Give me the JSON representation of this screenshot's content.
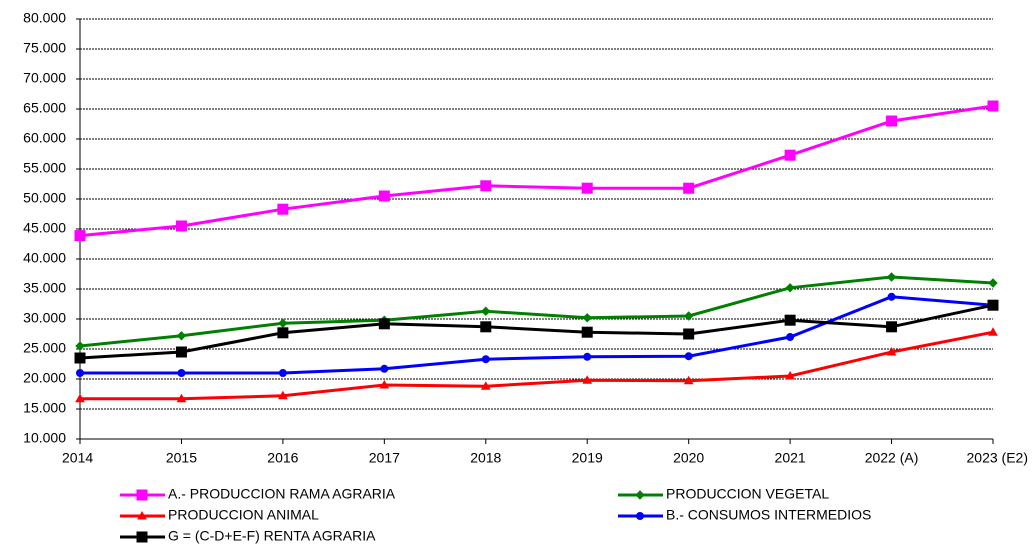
{
  "chart_data": {
    "type": "line",
    "categories": [
      "2014",
      "2015",
      "2016",
      "2017",
      "2018",
      "2019",
      "2020",
      "2021",
      "2022 (A)",
      "2023 (E2)"
    ],
    "ylim": [
      10000,
      80000
    ],
    "yticks": [
      {
        "value": 10000,
        "label": "10.000"
      },
      {
        "value": 15000,
        "label": "15.000"
      },
      {
        "value": 20000,
        "label": "20.000"
      },
      {
        "value": 25000,
        "label": "25.000"
      },
      {
        "value": 30000,
        "label": "30.000"
      },
      {
        "value": 35000,
        "label": "35.000"
      },
      {
        "value": 40000,
        "label": "40.000"
      },
      {
        "value": 45000,
        "label": "45.000"
      },
      {
        "value": 50000,
        "label": "50.000"
      },
      {
        "value": 55000,
        "label": "55.000"
      },
      {
        "value": 60000,
        "label": "60.000"
      },
      {
        "value": 65000,
        "label": "65.000"
      },
      {
        "value": 70000,
        "label": "70.000"
      },
      {
        "value": 75000,
        "label": "75.000"
      },
      {
        "value": 80000,
        "label": "80.000"
      }
    ],
    "grid": true,
    "series": [
      {
        "name": "A.- PRODUCCION RAMA AGRARIA",
        "color": "#ff00ff",
        "marker": "square",
        "values": [
          43900,
          45500,
          48300,
          50500,
          52200,
          51800,
          51800,
          57300,
          63000,
          65500
        ]
      },
      {
        "name": "PRODUCCION VEGETAL",
        "color": "#008000",
        "marker": "diamond",
        "values": [
          25500,
          27200,
          29300,
          29800,
          31300,
          30200,
          30500,
          35200,
          37000,
          36000
        ]
      },
      {
        "name": "PRODUCCION ANIMAL",
        "color": "#ff0000",
        "marker": "triangle",
        "values": [
          16700,
          16700,
          17200,
          19000,
          18800,
          19800,
          19700,
          20500,
          24500,
          27800
        ]
      },
      {
        "name": "B.- CONSUMOS INTERMEDIOS",
        "color": "#0000ff",
        "marker": "circle",
        "values": [
          21000,
          21000,
          21000,
          21700,
          23300,
          23700,
          23800,
          27000,
          33700,
          32300
        ]
      },
      {
        "name": "G = (C-D+E-F)  RENTA AGRARIA",
        "color": "#000000",
        "marker": "square",
        "values": [
          23500,
          24500,
          27700,
          29200,
          28700,
          27800,
          27500,
          29800,
          28700,
          32300
        ]
      }
    ]
  }
}
